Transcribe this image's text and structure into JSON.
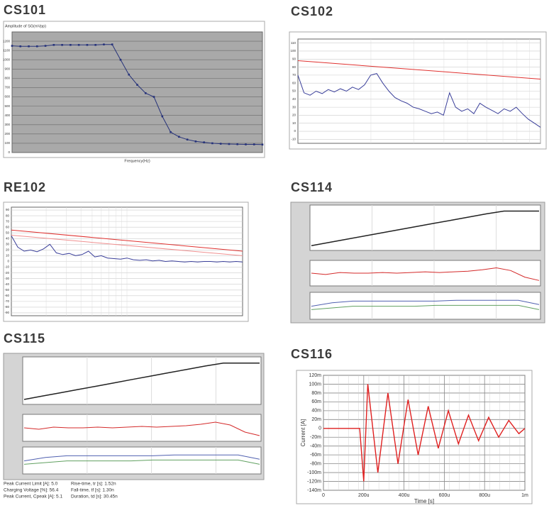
{
  "chart_data": [
    {
      "type": "line",
      "title": "CS101",
      "y_label": "Amplitude of SG(mVpp)",
      "x_label": "Frequency(Hz)",
      "ylim": [
        0,
        1300
      ],
      "yticks": [
        0,
        100,
        200,
        300,
        400,
        500,
        600,
        700,
        800,
        900,
        1000,
        1100,
        1200
      ],
      "grid": true,
      "markers": true,
      "color": "#27337a",
      "values": [
        1150,
        1145,
        1145,
        1145,
        1150,
        1160,
        1160,
        1160,
        1160,
        1160,
        1160,
        1165,
        1165,
        1000,
        840,
        730,
        640,
        600,
        390,
        220,
        170,
        140,
        120,
        110,
        100,
        95,
        92,
        90,
        88,
        88,
        86
      ]
    },
    {
      "type": "line",
      "title": "CS102",
      "ylim": [
        -15,
        115
      ],
      "yticks": [
        -10,
        0,
        10,
        20,
        30,
        40,
        50,
        60,
        70,
        80,
        90,
        100,
        110
      ],
      "grid": true,
      "series": [
        {
          "color": "#e0312f",
          "values": [
            88,
            65
          ]
        },
        {
          "color": "#3a3f9a",
          "values": [
            70,
            48,
            45,
            50,
            47,
            52,
            49,
            53,
            50,
            55,
            52,
            58,
            70,
            72,
            60,
            50,
            42,
            38,
            35,
            30,
            28,
            25,
            22,
            24,
            20,
            48,
            30,
            25,
            28,
            22,
            35,
            30,
            26,
            22,
            28,
            25,
            30,
            22,
            15,
            10,
            5
          ]
        }
      ]
    },
    {
      "type": "line",
      "title": "RE102",
      "ylim": [
        -95,
        95
      ],
      "yticks": [
        -90,
        -80,
        -70,
        -60,
        -50,
        -40,
        -30,
        -20,
        -10,
        0,
        10,
        20,
        30,
        40,
        50,
        60,
        70,
        80,
        90
      ],
      "grid": true,
      "series": [
        {
          "color": "#e0312f",
          "values": [
            55,
            18
          ]
        },
        {
          "color": "#f09090",
          "values": [
            46,
            10
          ]
        },
        {
          "color": "#3a3f9a",
          "values": [
            45,
            25,
            18,
            20,
            17,
            22,
            30,
            15,
            12,
            14,
            10,
            12,
            18,
            8,
            10,
            6,
            5,
            4,
            6,
            3,
            2,
            3,
            1,
            2,
            0,
            1,
            0,
            -1,
            0,
            -1,
            0,
            0,
            -1,
            0,
            -1,
            0,
            -1
          ]
        }
      ]
    },
    {
      "type": "panels",
      "title": "CS114",
      "panels": [
        {
          "ylim": [
            0,
            100
          ],
          "series": [
            {
              "color": "#222222",
              "values": [
                5,
                13,
                21,
                29,
                37,
                45,
                53,
                61,
                69,
                77,
                85,
                92,
                92,
                92
              ]
            }
          ]
        },
        {
          "ylim": [
            -15,
            15
          ],
          "series": [
            {
              "color": "#d42a2a",
              "values": [
                0,
                -2,
                1,
                0,
                0,
                1,
                0,
                1,
                2,
                1,
                2,
                3,
                5,
                8,
                4,
                -6,
                -11
              ]
            }
          ]
        },
        {
          "ylim": [
            -10,
            15
          ],
          "series": [
            {
              "color": "#5060b0",
              "values": [
                2,
                6,
                8,
                8,
                8,
                8,
                8,
                9,
                9,
                9,
                9,
                4
              ]
            },
            {
              "color": "#60a060",
              "values": [
                -2,
                0,
                2,
                2,
                2,
                2,
                3,
                3,
                3,
                3,
                3,
                -2
              ]
            }
          ]
        }
      ]
    },
    {
      "type": "panels",
      "title": "CS115",
      "panels": [
        {
          "ylim": [
            0,
            100
          ],
          "series": [
            {
              "color": "#222222",
              "values": [
                5,
                13,
                21,
                29,
                37,
                45,
                53,
                61,
                69,
                77,
                85,
                92,
                92,
                92
              ]
            }
          ]
        },
        {
          "ylim": [
            -15,
            15
          ],
          "series": [
            {
              "color": "#d42a2a",
              "values": [
                0,
                -2,
                1,
                0,
                0,
                1,
                0,
                1,
                2,
                1,
                2,
                3,
                5,
                8,
                4,
                -6,
                -11
              ]
            }
          ]
        },
        {
          "ylim": [
            -10,
            15
          ],
          "series": [
            {
              "color": "#5060b0",
              "values": [
                2,
                6,
                8,
                8,
                8,
                8,
                8,
                9,
                9,
                9,
                9,
                4
              ]
            },
            {
              "color": "#60a060",
              "values": [
                -2,
                0,
                2,
                2,
                2,
                2,
                3,
                3,
                3,
                3,
                3,
                -2
              ]
            }
          ]
        }
      ],
      "annotations": [
        "Peak Current Limit [A]: 5.0",
        "Rise-time, tr [s]: 1.52n",
        "Charging Voltage [%]: 56.4",
        "Fall-time, tf [s]: 1.30n",
        "Peak Current, Cpeak [A]: 5.1",
        "Duration, td [s]: 30.45n"
      ]
    },
    {
      "type": "line",
      "title": "CS116",
      "y_label": "Current [A]",
      "x_label": "Time [s]",
      "grid": true,
      "xlim": [
        0,
        0.001
      ],
      "ylim": [
        -0.14,
        0.12
      ],
      "xticks": [
        0,
        {
          "value": 0.0002,
          "label": "200u"
        },
        {
          "value": 0.0004,
          "label": "400u"
        },
        {
          "value": 0.0006,
          "label": "600u"
        },
        {
          "value": 0.0008,
          "label": "800u"
        },
        {
          "value": 0.001,
          "label": "1m"
        }
      ],
      "yticks": [
        {
          "value": 0.12,
          "label": "120m"
        },
        {
          "value": 0.1,
          "label": "100m"
        },
        {
          "value": 0.08,
          "label": "80m"
        },
        {
          "value": 0.06,
          "label": "60m"
        },
        {
          "value": 0.04,
          "label": "40m"
        },
        {
          "value": 0.02,
          "label": "20m"
        },
        0,
        {
          "value": -0.02,
          "label": "-20m"
        },
        {
          "value": -0.04,
          "label": "-40m"
        },
        {
          "value": -0.06,
          "label": "-60m"
        },
        {
          "value": -0.08,
          "label": "-80m"
        },
        {
          "value": -0.1,
          "label": "-100m"
        },
        {
          "value": -0.12,
          "label": "-120m"
        },
        {
          "value": -0.14,
          "label": "-140m"
        }
      ],
      "series": [
        {
          "color": "#e02020",
          "x": [
            0,
            0.00018,
            0.0002,
            0.00022,
            0.00027,
            0.00032,
            0.00037,
            0.00042,
            0.00047,
            0.00052,
            0.00057,
            0.00062,
            0.00067,
            0.00072,
            0.00077,
            0.00082,
            0.00087,
            0.00092,
            0.00097,
            0.001
          ],
          "values": [
            0,
            0,
            -0.12,
            0.1,
            -0.1,
            0.08,
            -0.08,
            0.065,
            -0.06,
            0.05,
            -0.045,
            0.04,
            -0.035,
            0.03,
            -0.028,
            0.025,
            -0.02,
            0.018,
            -0.012,
            0
          ]
        }
      ]
    }
  ]
}
